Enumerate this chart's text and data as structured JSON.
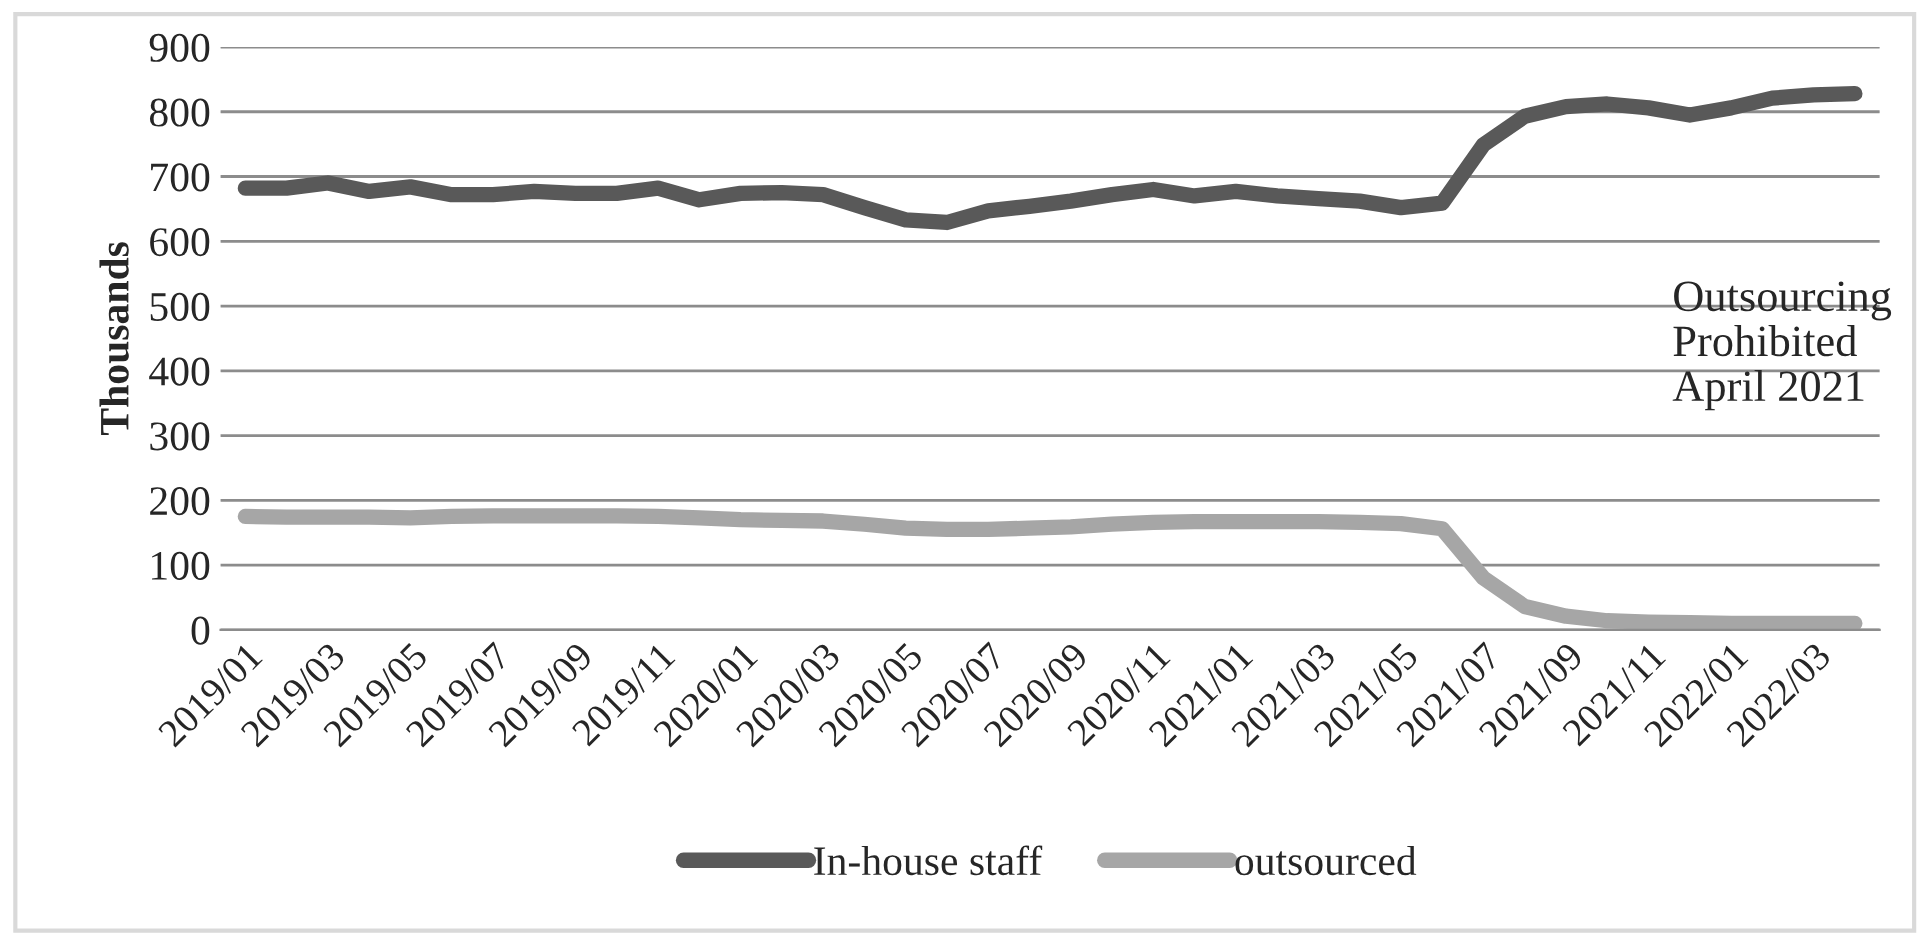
{
  "chart_data": {
    "type": "line",
    "ylabel": "Thousands",
    "categories": [
      "2019/01",
      null,
      "2019/03",
      null,
      "2019/05",
      null,
      "2019/07",
      null,
      "2019/09",
      null,
      "2019/11",
      null,
      "2020/01",
      null,
      "2020/03",
      null,
      "2020/05",
      null,
      "2020/07",
      null,
      "2020/09",
      null,
      "2020/11",
      null,
      "2021/01",
      null,
      "2021/03",
      null,
      "2021/05",
      null,
      "2021/07",
      null,
      "2021/09",
      null,
      "2021/11",
      null,
      "2022/01",
      null,
      "2022/03",
      null
    ],
    "series": [
      {
        "name": "In-house staff",
        "color": "#595959",
        "values": [
          682,
          682,
          690,
          677,
          684,
          672,
          672,
          677,
          674,
          674,
          682,
          664,
          674,
          675,
          672,
          652,
          633,
          629,
          647,
          654,
          662,
          672,
          680,
          670,
          677,
          670,
          666,
          662,
          652,
          659,
          749,
          793,
          808,
          812,
          806,
          795,
          806,
          821,
          826,
          828
        ]
      },
      {
        "name": "outsourced",
        "color": "#a6a6a6",
        "values": [
          175,
          174,
          174,
          174,
          173,
          175,
          176,
          176,
          176,
          176,
          175,
          173,
          170,
          169,
          168,
          163,
          157,
          155,
          155,
          157,
          159,
          163,
          166,
          167,
          167,
          167,
          167,
          166,
          164,
          156,
          80,
          36,
          21,
          14,
          12,
          11,
          10,
          10,
          10,
          10
        ]
      }
    ],
    "ylim": [
      0,
      900
    ],
    "yticks": [
      0,
      100,
      200,
      300,
      400,
      500,
      600,
      700,
      800,
      900
    ],
    "grid": "y",
    "legend": "bottom",
    "line_style": "solid",
    "marker": "none",
    "annotations": [
      "Outsourcing\nProhibited\nApril 2021"
    ]
  }
}
